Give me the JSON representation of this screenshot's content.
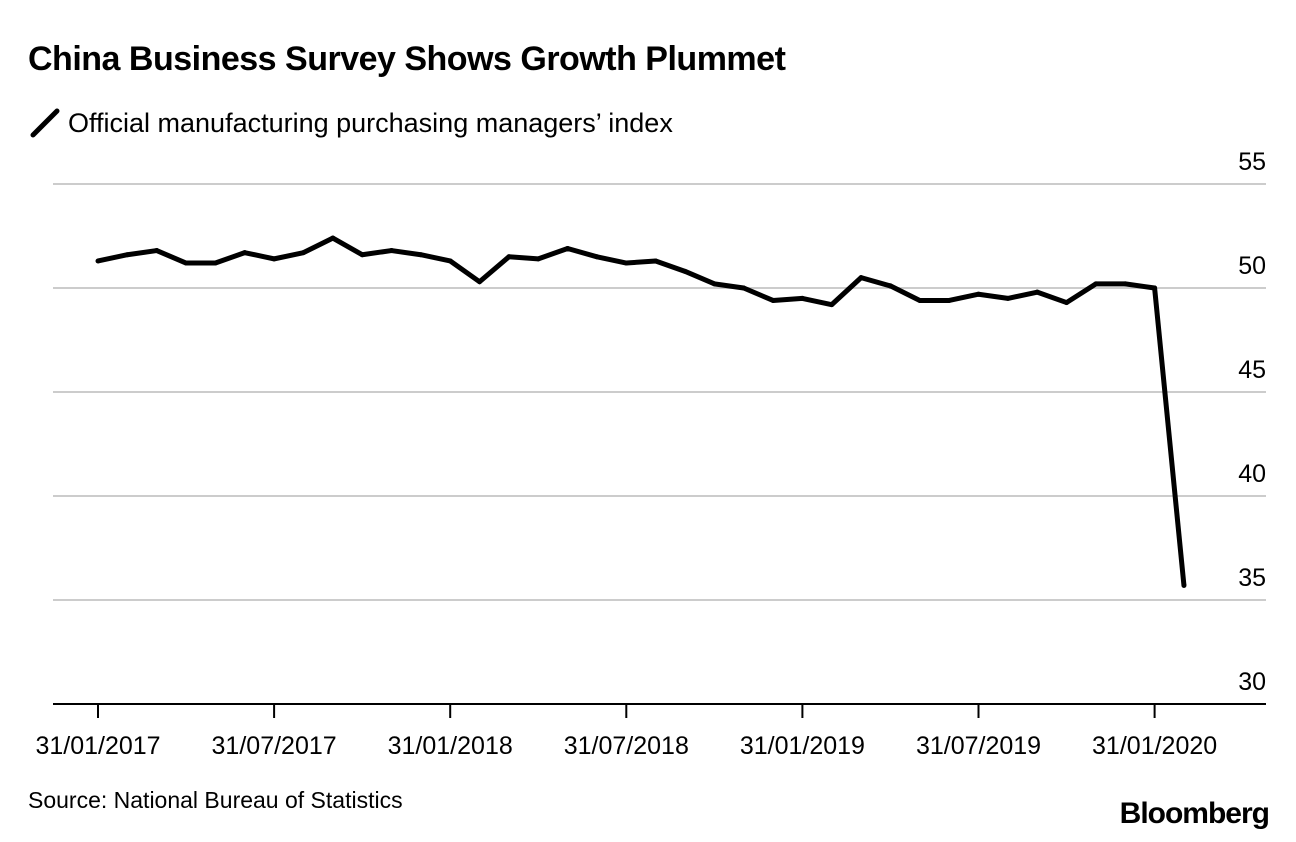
{
  "header": {
    "title": "China Business Survey Shows Growth Plummet"
  },
  "legend": {
    "label": "Official manufacturing purchasing managers’ index",
    "icon": "line-swatch-icon"
  },
  "footer": {
    "source": "Source: National Bureau of Statistics",
    "brand": "Bloomberg"
  },
  "colors": {
    "line": "#000000",
    "grid": "#cccccc",
    "axis": "#000000",
    "text": "#000000"
  },
  "chart_data": {
    "type": "line",
    "title": "China Business Survey Shows Growth Plummet",
    "xlabel": "",
    "ylabel": "",
    "ylim": [
      30,
      55
    ],
    "yticks": [
      55,
      50,
      45,
      40,
      35,
      30
    ],
    "xticks": [
      {
        "index": 0,
        "label": "31/01/2017"
      },
      {
        "index": 6,
        "label": "31/07/2017"
      },
      {
        "index": 12,
        "label": "31/01/2018"
      },
      {
        "index": 18,
        "label": "31/07/2018"
      },
      {
        "index": 24,
        "label": "31/01/2019"
      },
      {
        "index": 30,
        "label": "31/07/2019"
      },
      {
        "index": 36,
        "label": "31/01/2020"
      }
    ],
    "grid": true,
    "legend_position": "top-left",
    "series": [
      {
        "name": "Official manufacturing purchasing managers’ index",
        "x": [
          "31/01/2017",
          "28/02/2017",
          "31/03/2017",
          "30/04/2017",
          "31/05/2017",
          "30/06/2017",
          "31/07/2017",
          "31/08/2017",
          "30/09/2017",
          "31/10/2017",
          "30/11/2017",
          "31/12/2017",
          "31/01/2018",
          "28/02/2018",
          "31/03/2018",
          "30/04/2018",
          "31/05/2018",
          "30/06/2018",
          "31/07/2018",
          "31/08/2018",
          "30/09/2018",
          "31/10/2018",
          "30/11/2018",
          "31/12/2018",
          "31/01/2019",
          "28/02/2019",
          "31/03/2019",
          "30/04/2019",
          "31/05/2019",
          "30/06/2019",
          "31/07/2019",
          "31/08/2019",
          "30/09/2019",
          "31/10/2019",
          "30/11/2019",
          "31/12/2019",
          "31/01/2020",
          "29/02/2020"
        ],
        "values": [
          51.3,
          51.6,
          51.8,
          51.2,
          51.2,
          51.7,
          51.4,
          51.7,
          52.4,
          51.6,
          51.8,
          51.6,
          51.3,
          50.3,
          51.5,
          51.4,
          51.9,
          51.5,
          51.2,
          51.3,
          50.8,
          50.2,
          50.0,
          49.4,
          49.5,
          49.2,
          50.5,
          50.1,
          49.4,
          49.4,
          49.7,
          49.5,
          49.8,
          49.3,
          50.2,
          50.2,
          50.0,
          35.7
        ]
      }
    ]
  }
}
